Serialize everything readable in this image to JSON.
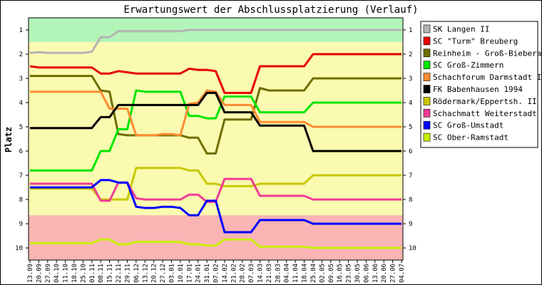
{
  "chart_data": {
    "type": "line",
    "title": "Erwartungswert der Abschlussplatzierung (Verlauf)",
    "ylabel": "Platz",
    "xlabel": "",
    "ylim": [
      10.5,
      0.5
    ],
    "y_ticks": [
      1,
      2,
      3,
      4,
      5,
      6,
      7,
      8,
      9,
      10
    ],
    "bands": [
      {
        "from": 0.5,
        "to": 1.5,
        "color": "#b3f5b8"
      },
      {
        "from": 1.5,
        "to": 8.65,
        "color": "#fafab0"
      },
      {
        "from": 8.65,
        "to": 10.5,
        "color": "#fab4b4"
      }
    ],
    "categories": [
      "13.09",
      "20.09",
      "27.09",
      "04.10",
      "11.10",
      "18.10",
      "25.10",
      "01.11",
      "08.11",
      "15.11",
      "22.11",
      "29.11",
      "06.12",
      "13.12",
      "20.12",
      "27.12",
      "03.01",
      "10.01",
      "17.01",
      "24.01",
      "31.01",
      "07.02",
      "14.02",
      "21.02",
      "28.02",
      "07.03",
      "14.03",
      "21.03",
      "28.03",
      "04.04",
      "11.04",
      "18.04",
      "25.04",
      "02.05",
      "09.05",
      "16.05",
      "23.05",
      "30.05",
      "06.06",
      "13.06",
      "20.06",
      "27.06",
      "04.07"
    ],
    "series": [
      {
        "name": "SK Langen II",
        "color": "#b4b4b4",
        "values": [
          1.95,
          1.92,
          1.95,
          1.95,
          1.95,
          1.95,
          1.95,
          1.9,
          1.3,
          1.3,
          1.05,
          1.05,
          1.05,
          1.05,
          1.05,
          1.05,
          1.05,
          1.05,
          1.0,
          1.0,
          1.0,
          1.0,
          1.0,
          1.0,
          1.0,
          1.0,
          1.0,
          1.0,
          1.0,
          1.0,
          1.0,
          1.0,
          1.0,
          1.0,
          1.0,
          1.0,
          1.0,
          1.0,
          1.0,
          1.0,
          1.0,
          1.0,
          1.0
        ]
      },
      {
        "name": "SC \"Turm\" Breuberg",
        "color": "#e60000",
        "values": [
          2.5,
          2.55,
          2.55,
          2.55,
          2.55,
          2.55,
          2.55,
          2.55,
          2.8,
          2.8,
          2.7,
          2.75,
          2.8,
          2.8,
          2.8,
          2.8,
          2.8,
          2.8,
          2.6,
          2.65,
          2.65,
          2.7,
          3.6,
          3.6,
          3.6,
          3.6,
          2.5,
          2.5,
          2.5,
          2.5,
          2.5,
          2.5,
          2.0,
          2.0,
          2.0,
          2.0,
          2.0,
          2.0,
          2.0,
          2.0,
          2.0,
          2.0,
          2.0
        ]
      },
      {
        "name": "Reinheim - Groß-Bieberau",
        "color": "#6e6e00",
        "values": [
          2.9,
          2.9,
          2.9,
          2.9,
          2.9,
          2.9,
          2.9,
          2.9,
          3.5,
          3.55,
          5.3,
          5.35,
          5.35,
          5.35,
          5.35,
          5.35,
          5.35,
          5.35,
          5.45,
          5.45,
          6.1,
          6.1,
          4.7,
          4.7,
          4.7,
          4.7,
          3.4,
          3.5,
          3.5,
          3.5,
          3.5,
          3.5,
          3.0,
          3.0,
          3.0,
          3.0,
          3.0,
          3.0,
          3.0,
          3.0,
          3.0,
          3.0,
          3.0
        ]
      },
      {
        "name": "SC Groß-Zimmern",
        "color": "#00e600",
        "values": [
          6.8,
          6.8,
          6.8,
          6.8,
          6.8,
          6.8,
          6.8,
          6.8,
          6.0,
          6.0,
          5.1,
          5.1,
          3.5,
          3.55,
          3.55,
          3.55,
          3.55,
          3.55,
          4.55,
          4.55,
          4.65,
          4.65,
          3.75,
          3.75,
          3.75,
          3.75,
          4.4,
          4.4,
          4.4,
          4.4,
          4.4,
          4.4,
          4.0,
          4.0,
          4.0,
          4.0,
          4.0,
          4.0,
          4.0,
          4.0,
          4.0,
          4.0,
          4.0
        ]
      },
      {
        "name": "Schachforum Darmstadt II",
        "color": "#ff8c32",
        "values": [
          3.55,
          3.55,
          3.55,
          3.55,
          3.55,
          3.55,
          3.55,
          3.55,
          3.55,
          4.25,
          4.25,
          4.25,
          5.35,
          5.35,
          5.35,
          5.3,
          5.3,
          5.35,
          4.05,
          4.0,
          3.5,
          3.55,
          4.1,
          4.1,
          4.1,
          4.1,
          4.8,
          4.8,
          4.8,
          4.8,
          4.8,
          4.8,
          5.0,
          5.0,
          5.0,
          5.0,
          5.0,
          5.0,
          5.0,
          5.0,
          5.0,
          5.0,
          5.0
        ]
      },
      {
        "name": "FK Babenhausen 1994",
        "color": "#000000",
        "values": [
          5.05,
          5.05,
          5.05,
          5.05,
          5.05,
          5.05,
          5.05,
          5.05,
          4.6,
          4.6,
          4.1,
          4.1,
          4.1,
          4.1,
          4.1,
          4.1,
          4.1,
          4.1,
          4.1,
          4.1,
          3.6,
          3.6,
          4.4,
          4.4,
          4.4,
          4.4,
          4.95,
          4.95,
          4.95,
          4.95,
          4.95,
          4.95,
          6.0,
          6.0,
          6.0,
          6.0,
          6.0,
          6.0,
          6.0,
          6.0,
          6.0,
          6.0,
          6.0
        ]
      },
      {
        "name": "Rödermark/Eppertsh. II",
        "color": "#c8c800",
        "values": [
          7.55,
          7.55,
          7.55,
          7.55,
          7.55,
          7.55,
          7.55,
          7.55,
          8.0,
          8.0,
          8.0,
          8.0,
          6.7,
          6.7,
          6.7,
          6.7,
          6.7,
          6.7,
          6.8,
          6.8,
          7.35,
          7.35,
          7.45,
          7.45,
          7.45,
          7.45,
          7.35,
          7.35,
          7.35,
          7.35,
          7.35,
          7.35,
          7.0,
          7.0,
          7.0,
          7.0,
          7.0,
          7.0,
          7.0,
          7.0,
          7.0,
          7.0,
          7.0
        ]
      },
      {
        "name": "Schachmatt Weiterstadt",
        "color": "#f03c96",
        "values": [
          7.35,
          7.35,
          7.35,
          7.35,
          7.35,
          7.35,
          7.35,
          7.35,
          8.05,
          8.05,
          7.3,
          7.3,
          7.95,
          8.0,
          8.0,
          8.0,
          8.0,
          8.0,
          7.8,
          7.8,
          8.1,
          8.1,
          7.15,
          7.15,
          7.15,
          7.15,
          7.85,
          7.85,
          7.85,
          7.85,
          7.85,
          7.85,
          8.0,
          8.0,
          8.0,
          8.0,
          8.0,
          8.0,
          8.0,
          8.0,
          8.0,
          8.0,
          8.0
        ]
      },
      {
        "name": "SC Groß-Umstadt",
        "color": "#0000ff",
        "values": [
          7.5,
          7.5,
          7.5,
          7.5,
          7.5,
          7.5,
          7.5,
          7.5,
          7.2,
          7.2,
          7.3,
          7.3,
          8.3,
          8.35,
          8.35,
          8.3,
          8.3,
          8.35,
          8.65,
          8.65,
          8.05,
          8.05,
          9.35,
          9.35,
          9.35,
          9.35,
          8.85,
          8.85,
          8.85,
          8.85,
          8.85,
          8.85,
          9.0,
          9.0,
          9.0,
          9.0,
          9.0,
          9.0,
          9.0,
          9.0,
          9.0,
          9.0,
          9.0
        ]
      },
      {
        "name": "SC Ober-Ramstadt",
        "color": "#c8f000",
        "values": [
          9.8,
          9.8,
          9.8,
          9.8,
          9.8,
          9.8,
          9.8,
          9.8,
          9.65,
          9.65,
          9.85,
          9.85,
          9.75,
          9.75,
          9.75,
          9.75,
          9.75,
          9.75,
          9.85,
          9.85,
          9.9,
          9.9,
          9.65,
          9.65,
          9.65,
          9.65,
          9.95,
          9.95,
          9.95,
          9.95,
          9.95,
          9.95,
          10.0,
          10.0,
          10.0,
          10.0,
          10.0,
          10.0,
          10.0,
          10.0,
          10.0,
          10.0,
          10.0
        ]
      }
    ],
    "legend_position": "right",
    "grid": false
  }
}
